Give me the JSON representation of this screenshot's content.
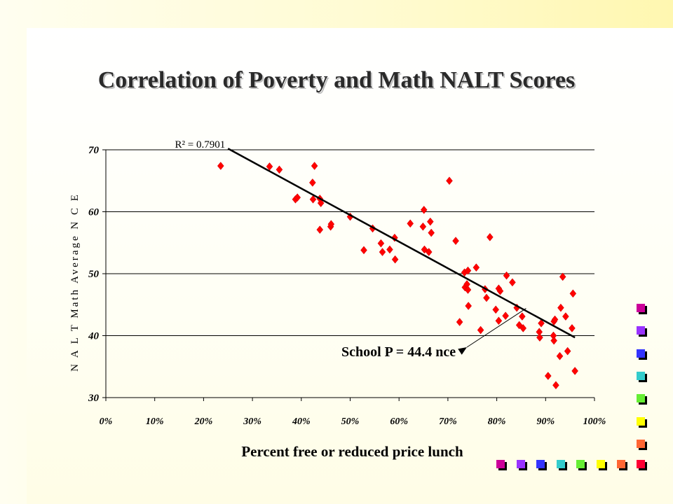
{
  "slide": {
    "decor_colors": [
      "#cc0099",
      "#9933ff",
      "#3333ff",
      "#33cccc",
      "#66ee33",
      "#ffff00",
      "#ff6633",
      "#ff0033"
    ]
  },
  "chart_data": {
    "type": "scatter",
    "title": "Correlation of Poverty and Math NALT Scores",
    "xlabel": "Percent free or reduced price lunch",
    "ylabel": "N A L T Math Average N C E",
    "xlim": [
      0,
      100
    ],
    "ylim": [
      30,
      70
    ],
    "x_ticks": [
      "0%",
      "10%",
      "20%",
      "30%",
      "40%",
      "50%",
      "60%",
      "70%",
      "80%",
      "90%",
      "100%"
    ],
    "y_ticks": [
      "30",
      "40",
      "50",
      "60",
      "70"
    ],
    "grid": "horizontal",
    "marker_color": "#ff0000",
    "trendline": {
      "label": "R² = 0.7901",
      "start": [
        25,
        70.2
      ],
      "end": [
        96,
        39.7
      ]
    },
    "annotation": {
      "text": "School P = 44.4 nce",
      "x": 86,
      "y": 44.4
    },
    "points": [
      [
        23.5,
        67.4
      ],
      [
        33.5,
        67.3
      ],
      [
        35.5,
        66.8
      ],
      [
        38.8,
        62.0
      ],
      [
        39.2,
        62.3
      ],
      [
        42.3,
        64.7
      ],
      [
        42.7,
        67.4
      ],
      [
        42.4,
        62.0
      ],
      [
        43.8,
        62.1
      ],
      [
        44.0,
        61.4
      ],
      [
        43.8,
        57.1
      ],
      [
        46.0,
        57.6
      ],
      [
        46.1,
        58.0
      ],
      [
        50.0,
        59.2
      ],
      [
        52.8,
        53.8
      ],
      [
        54.6,
        57.3
      ],
      [
        56.3,
        54.9
      ],
      [
        56.6,
        53.5
      ],
      [
        58.1,
        53.9
      ],
      [
        59.1,
        55.8
      ],
      [
        59.2,
        52.3
      ],
      [
        62.3,
        58.1
      ],
      [
        64.9,
        57.6
      ],
      [
        65.1,
        60.3
      ],
      [
        66.4,
        58.4
      ],
      [
        66.6,
        56.6
      ],
      [
        65.2,
        53.9
      ],
      [
        66.1,
        53.5
      ],
      [
        70.3,
        65.0
      ],
      [
        71.6,
        55.3
      ],
      [
        72.4,
        42.2
      ],
      [
        73.4,
        50.2
      ],
      [
        74.1,
        50.5
      ],
      [
        73.5,
        47.8
      ],
      [
        73.9,
        48.3
      ],
      [
        74.1,
        47.4
      ],
      [
        74.2,
        44.8
      ],
      [
        75.8,
        51.0
      ],
      [
        76.7,
        40.9
      ],
      [
        77.6,
        47.5
      ],
      [
        77.9,
        46.1
      ],
      [
        78.6,
        55.9
      ],
      [
        79.8,
        44.2
      ],
      [
        80.4,
        47.6
      ],
      [
        80.7,
        47.2
      ],
      [
        80.4,
        42.4
      ],
      [
        82.0,
        49.7
      ],
      [
        81.8,
        43.2
      ],
      [
        83.2,
        48.6
      ],
      [
        84.1,
        44.5
      ],
      [
        84.6,
        41.7
      ],
      [
        85.4,
        41.2
      ],
      [
        85.2,
        43.1
      ],
      [
        88.7,
        40.6
      ],
      [
        88.8,
        39.7
      ],
      [
        89.1,
        42.0
      ],
      [
        90.5,
        33.5
      ],
      [
        91.7,
        42.3
      ],
      [
        91.9,
        42.6
      ],
      [
        91.6,
        40.0
      ],
      [
        91.7,
        39.2
      ],
      [
        92.1,
        32.0
      ],
      [
        92.9,
        36.7
      ],
      [
        93.1,
        44.5
      ],
      [
        93.5,
        49.5
      ],
      [
        94.1,
        43.1
      ],
      [
        94.5,
        37.5
      ],
      [
        95.4,
        41.2
      ],
      [
        95.6,
        46.8
      ],
      [
        96.0,
        34.3
      ]
    ]
  }
}
